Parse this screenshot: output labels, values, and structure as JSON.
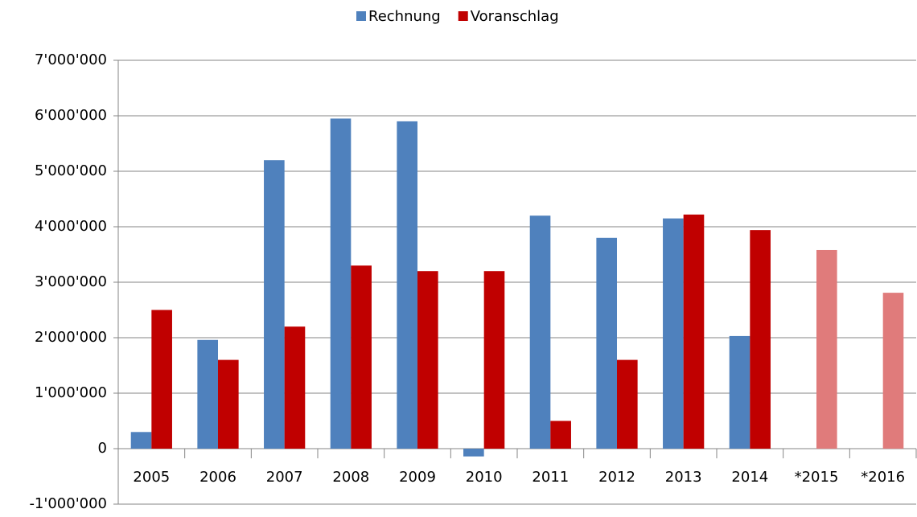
{
  "chart_data": {
    "type": "bar",
    "categories": [
      "2005",
      "2006",
      "2007",
      "2008",
      "2009",
      "2010",
      "2011",
      "2012",
      "2013",
      "2014",
      "*2015",
      "*2016"
    ],
    "series": [
      {
        "name": "Rechnung",
        "color": "#4f81bd",
        "values": [
          300000,
          1960000,
          5200000,
          5950000,
          5900000,
          -140000,
          4200000,
          3800000,
          4150000,
          2030000,
          null,
          null
        ]
      },
      {
        "name": "Voranschlag",
        "color": "#c00000",
        "colors": [
          "#c00000",
          "#c00000",
          "#c00000",
          "#c00000",
          "#c00000",
          "#c00000",
          "#c00000",
          "#c00000",
          "#c00000",
          "#c00000",
          "#e07b7b",
          "#e07b7b"
        ],
        "values": [
          2500000,
          1600000,
          2200000,
          3300000,
          3200000,
          3200000,
          500000,
          1600000,
          4220000,
          3940000,
          3580000,
          2810000
        ]
      }
    ],
    "ylim": [
      -1000000,
      7000000
    ],
    "yticks": [
      {
        "value": -1000000,
        "label": "-1'000'000"
      },
      0,
      {
        "value": 1000000,
        "label": "1'000'000"
      },
      {
        "value": 2000000,
        "label": "2'000'000"
      },
      {
        "value": 3000000,
        "label": "3'000'000"
      },
      {
        "value": 4000000,
        "label": "4'000'000"
      },
      {
        "value": 5000000,
        "label": "5'000'000"
      },
      {
        "value": 6000000,
        "label": "6'000'000"
      },
      {
        "value": 7000000,
        "label": "7'000'000"
      }
    ],
    "grid": true,
    "legend": "top"
  }
}
